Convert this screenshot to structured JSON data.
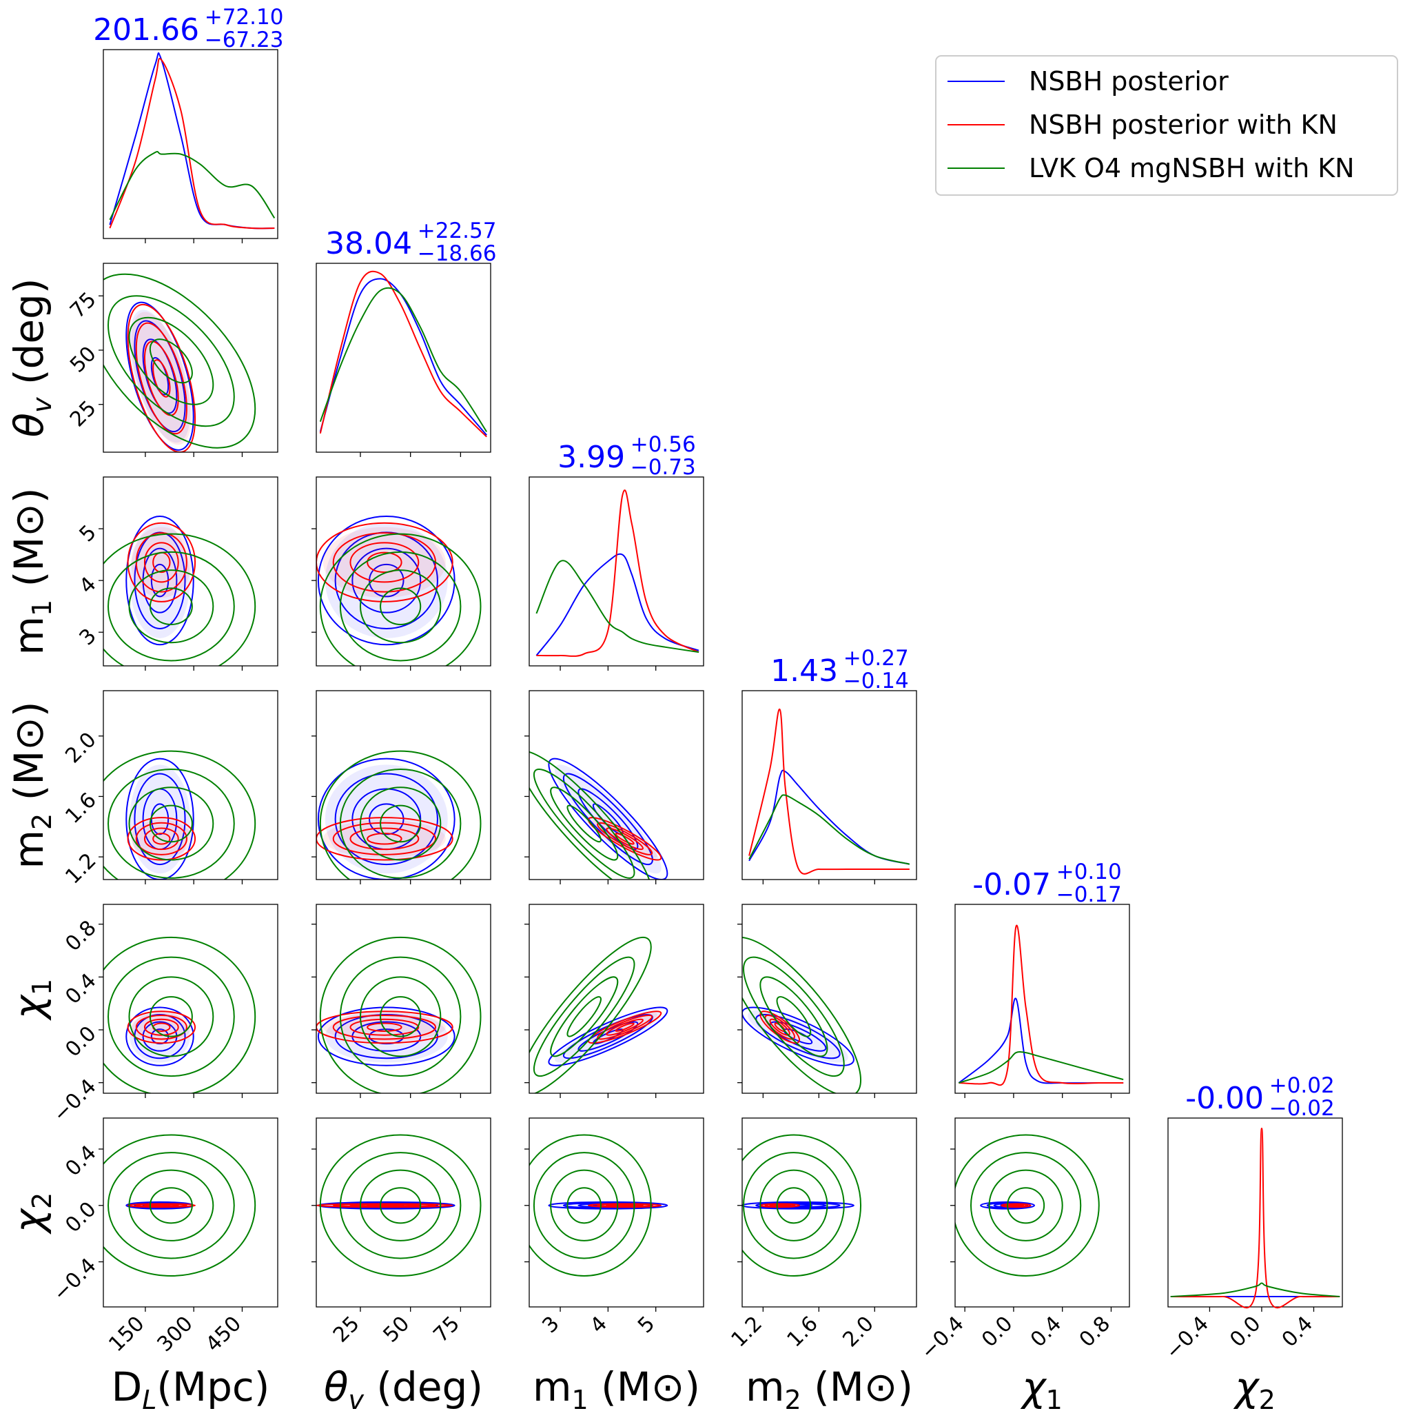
{
  "chart_data": {
    "type": "corner",
    "parameters": [
      {
        "key": "dl",
        "label": "D_L(Mpc)",
        "label_main": "D",
        "label_sub": "L",
        "label_rest": "(Mpc)",
        "range": [
          20,
          560
        ],
        "ticks": [
          150,
          300,
          450
        ],
        "tick_labels": [
          "150",
          "300",
          "450"
        ],
        "median": "201.66",
        "plus": "+72.10",
        "minus": "−67.23"
      },
      {
        "key": "theta",
        "label": "θ_v (deg)",
        "label_main": "θ",
        "label_sub": "v",
        "label_rest": " (deg)",
        "range": [
          3,
          90
        ],
        "ticks": [
          25,
          50,
          75
        ],
        "tick_labels": [
          "25",
          "50",
          "75"
        ],
        "median": "38.04",
        "plus": "+22.57",
        "minus": "−18.66"
      },
      {
        "key": "m1",
        "label": "m_1 (M⊙)",
        "label_main": "m",
        "label_sub": "1",
        "label_rest": " (M⊙)",
        "range": [
          2.35,
          6.0
        ],
        "ticks": [
          3,
          4,
          5
        ],
        "tick_labels": [
          "3",
          "4",
          "5"
        ],
        "median": "3.99",
        "plus": "+0.56",
        "minus": "−0.73"
      },
      {
        "key": "m2",
        "label": "m_2 (M⊙)",
        "label_main": "m",
        "label_sub": "2",
        "label_rest": " (M⊙)",
        "range": [
          1.05,
          2.3
        ],
        "ticks": [
          1.2,
          1.6,
          2.0
        ],
        "tick_labels": [
          "1.2",
          "1.6",
          "2.0"
        ],
        "median": "1.43",
        "plus": "+0.27",
        "minus": "−0.14"
      },
      {
        "key": "chi1",
        "label": "χ1",
        "label_main": "χ",
        "label_sub": "1",
        "label_rest": "",
        "range": [
          -0.48,
          0.95
        ],
        "ticks": [
          -0.4,
          0.0,
          0.4,
          0.8
        ],
        "tick_labels": [
          "−0.4",
          "0.0",
          "0.4",
          "0.8"
        ],
        "median": "-0.07",
        "plus": "+0.10",
        "minus": "−0.17"
      },
      {
        "key": "chi2",
        "label": "χ2",
        "label_main": "χ",
        "label_sub": "2",
        "label_rest": "",
        "range": [
          -0.72,
          0.62
        ],
        "ticks": [
          -0.4,
          0.0,
          0.4
        ],
        "tick_labels": [
          "−0.4",
          "0.0",
          "0.4"
        ],
        "median": "-0.00",
        "plus": "+0.02",
        "minus": "−0.02"
      }
    ],
    "series": [
      {
        "name": "NSBH posterior",
        "color": "#0000ff",
        "means": [
          195,
          38,
          4.0,
          1.45,
          -0.05,
          0.0
        ],
        "sds": [
          52,
          17,
          0.62,
          0.2,
          0.11,
          0.012
        ]
      },
      {
        "name": "NSBH posterior with KN",
        "color": "#ff0000",
        "means": [
          200,
          37,
          4.35,
          1.32,
          0.02,
          0.0
        ],
        "sds": [
          52,
          17,
          0.38,
          0.07,
          0.06,
          0.006
        ]
      },
      {
        "name": "LVK O4 mgNSBH with KN",
        "color": "#008000",
        "means": [
          230,
          45,
          3.5,
          1.42,
          0.1,
          0.0
        ],
        "sds": [
          130,
          20,
          0.7,
          0.24,
          0.3,
          0.25
        ]
      }
    ],
    "marginals": {
      "dl": {
        "x": [
          40,
          120,
          180,
          200,
          260,
          320,
          400,
          480,
          550
        ],
        "NSBH posterior": [
          0.02,
          0.55,
          0.97,
          1.0,
          0.55,
          0.08,
          0.02,
          0.0,
          0.0
        ],
        "NSBH posterior with KN": [
          0.0,
          0.4,
          0.88,
          1.0,
          0.7,
          0.1,
          0.02,
          0.0,
          0.0
        ],
        "LVK O4 mgNSBH with KN": [
          0.05,
          0.35,
          0.45,
          0.44,
          0.44,
          0.38,
          0.25,
          0.25,
          0.06
        ]
      },
      "theta": {
        "x": [
          5,
          15,
          25,
          35,
          45,
          55,
          65,
          75,
          88
        ],
        "NSBH posterior": [
          0.06,
          0.5,
          0.88,
          0.97,
          0.88,
          0.65,
          0.36,
          0.22,
          0.04
        ],
        "NSBH posterior with KN": [
          0.05,
          0.55,
          0.95,
          1.0,
          0.82,
          0.55,
          0.3,
          0.18,
          0.03
        ],
        "LVK O4 mgNSBH with KN": [
          0.12,
          0.45,
          0.72,
          0.9,
          0.88,
          0.68,
          0.42,
          0.3,
          0.06
        ]
      },
      "m1": {
        "x": [
          2.5,
          3.0,
          3.5,
          4.0,
          4.3,
          4.5,
          4.8,
          5.2,
          5.9
        ],
        "NSBH posterior": [
          0.0,
          0.18,
          0.42,
          0.56,
          0.6,
          0.48,
          0.22,
          0.1,
          0.03
        ],
        "NSBH posterior with KN": [
          0.0,
          0.0,
          0.01,
          0.15,
          0.95,
          0.78,
          0.32,
          0.12,
          0.02
        ],
        "LVK O4 mgNSBH with KN": [
          0.25,
          0.56,
          0.42,
          0.2,
          0.14,
          0.1,
          0.07,
          0.05,
          0.02
        ]
      },
      "m2": {
        "x": [
          1.1,
          1.25,
          1.32,
          1.36,
          1.45,
          1.6,
          1.8,
          2.0,
          2.25
        ],
        "NSBH posterior": [
          0.05,
          0.28,
          0.55,
          0.58,
          0.5,
          0.36,
          0.2,
          0.08,
          0.03
        ],
        "NSBH posterior with KN": [
          0.08,
          0.6,
          0.95,
          0.48,
          0.01,
          0.0,
          0.0,
          0.0,
          0.0
        ],
        "LVK O4 mgNSBH with KN": [
          0.06,
          0.3,
          0.42,
          0.44,
          0.4,
          0.32,
          0.18,
          0.08,
          0.03
        ]
      },
      "chi1": {
        "x": [
          -0.45,
          -0.2,
          -0.05,
          0.02,
          0.1,
          0.2,
          0.4,
          0.7,
          0.9
        ],
        "NSBH posterior": [
          0.0,
          0.14,
          0.28,
          0.5,
          0.12,
          0.01,
          0.0,
          0.0,
          0.0
        ],
        "NSBH posterior with KN": [
          0.0,
          0.0,
          0.08,
          0.93,
          0.45,
          0.06,
          0.0,
          0.0,
          0.0
        ],
        "LVK O4 mgNSBH with KN": [
          0.0,
          0.06,
          0.13,
          0.18,
          0.18,
          0.16,
          0.12,
          0.06,
          0.02
        ]
      },
      "chi2": {
        "x": [
          -0.7,
          -0.3,
          -0.05,
          0.0,
          0.05,
          0.3,
          0.6
        ],
        "NSBH posterior": [
          0.0,
          0.0,
          0.0,
          0.0,
          0.0,
          0.0,
          0.0
        ],
        "NSBH posterior with KN": [
          0.0,
          0.0,
          0.01,
          1.0,
          0.01,
          0.0,
          0.0
        ],
        "LVK O4 mgNSBH with KN": [
          0.0,
          0.02,
          0.06,
          0.08,
          0.06,
          0.02,
          0.0
        ]
      }
    },
    "correlations": {
      "dl_theta": -0.55,
      "m1_m2": -0.9,
      "m1_chi1": 0.88,
      "m2_chi1": -0.8
    },
    "legend": {
      "placement": "top-right",
      "entries": [
        "NSBH posterior",
        "NSBH posterior with KN",
        "LVK O4 mgNSBH with KN"
      ]
    }
  }
}
